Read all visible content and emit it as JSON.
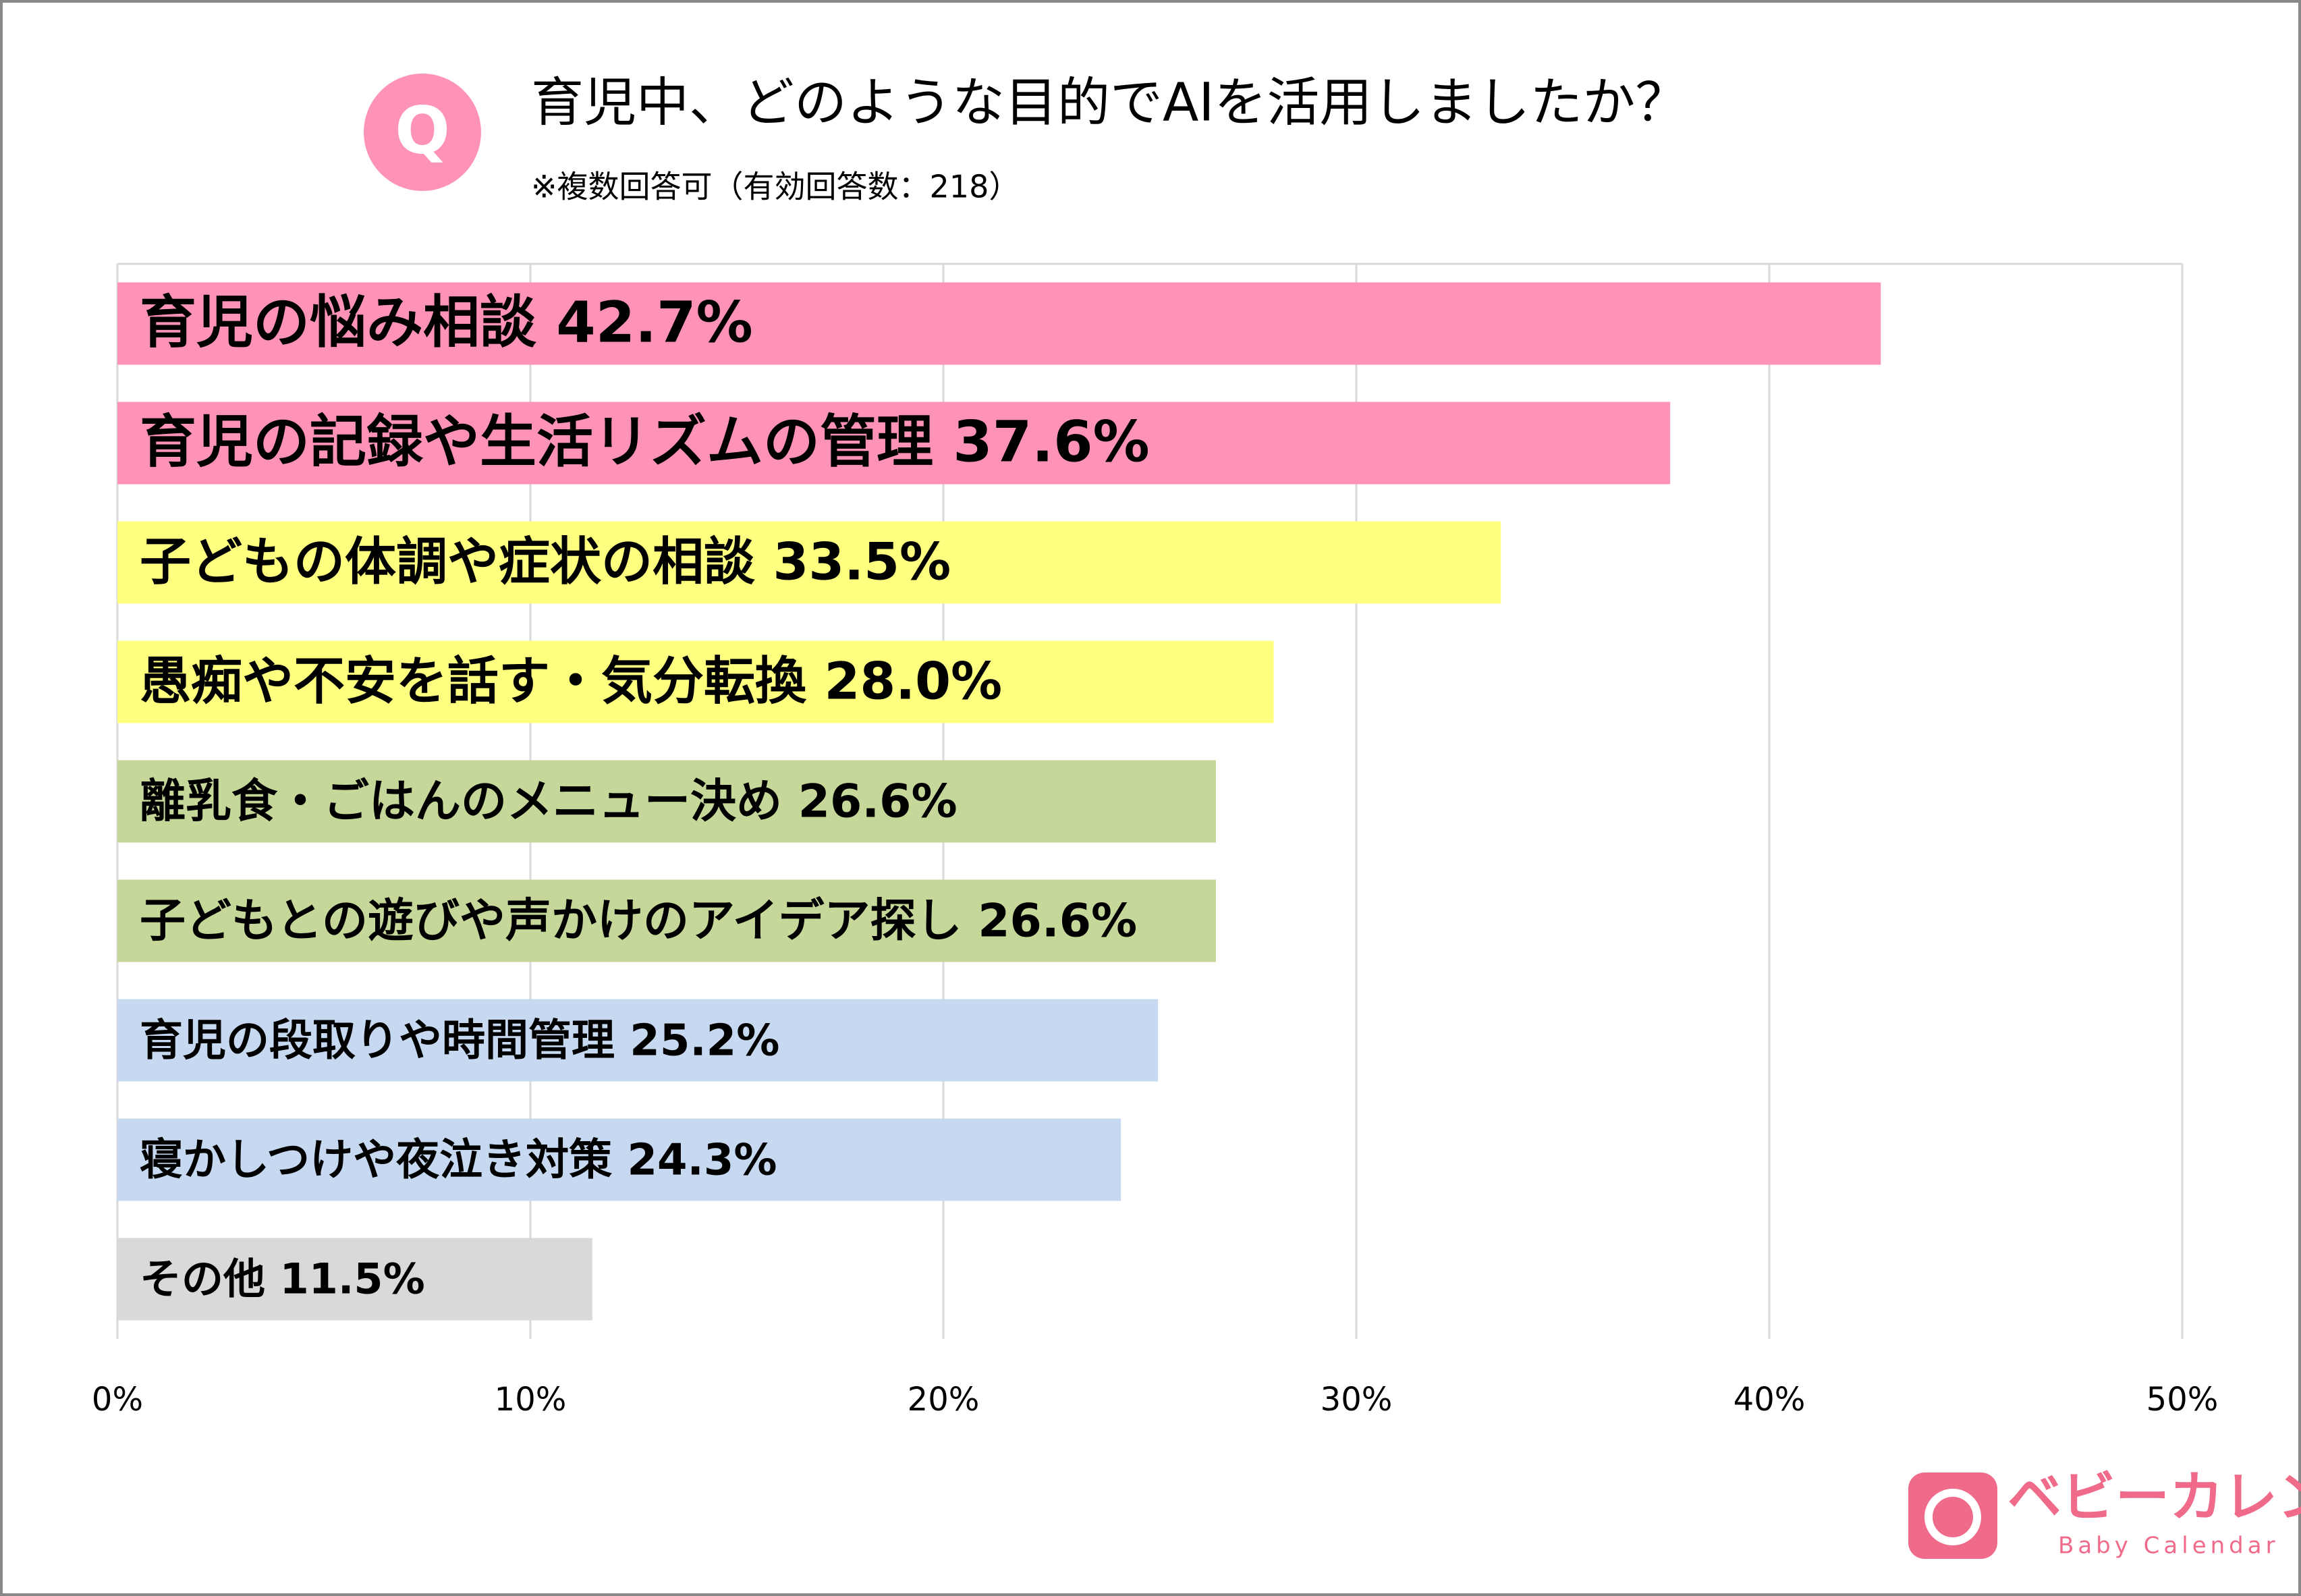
{
  "chart_data": {
    "type": "bar",
    "orientation": "horizontal",
    "icon_label": "Q",
    "title": "育児中、どのような目的でAIを活用しましたか？",
    "subtitle": "※複数回答可（有効回答数：218）",
    "categories": [
      "育児の悩み相談",
      "育児の記録や生活リズムの管理",
      "子どもの体調や症状の相談",
      "愚痴や不安を話す・気分転換",
      "離乳食・ごはんのメニュー決め",
      "子どもとの遊びや声かけのアイデア探し",
      "育児の段取りや時間管理",
      "寝かしつけや夜泣き対策",
      "その他"
    ],
    "values": [
      42.7,
      37.6,
      33.5,
      28.0,
      26.6,
      26.6,
      25.2,
      24.3,
      11.5
    ],
    "value_labels": [
      "42.7%",
      "37.6%",
      "33.5%",
      "28.0%",
      "26.6%",
      "26.6%",
      "25.2%",
      "24.3%",
      "11.5%"
    ],
    "colors": [
      "#ff93b5",
      "#ff93b5",
      "#ffff80",
      "#ffff80",
      "#c5d89a",
      "#c5d89a",
      "#c6d9f1",
      "#c6d9f1",
      "#d9d9d9"
    ],
    "xlim": [
      0,
      50
    ],
    "xticks": [
      {
        "value": 0,
        "label": "0%"
      },
      {
        "value": 10,
        "label": "10%"
      },
      {
        "value": 20,
        "label": "20%"
      },
      {
        "value": 30,
        "label": "30%"
      },
      {
        "value": 40,
        "label": "40%"
      },
      {
        "value": 50,
        "label": "50%"
      }
    ],
    "grid": true,
    "logo": {
      "name": "ベビーカレンダー",
      "subname": "Baby Calendar"
    }
  }
}
